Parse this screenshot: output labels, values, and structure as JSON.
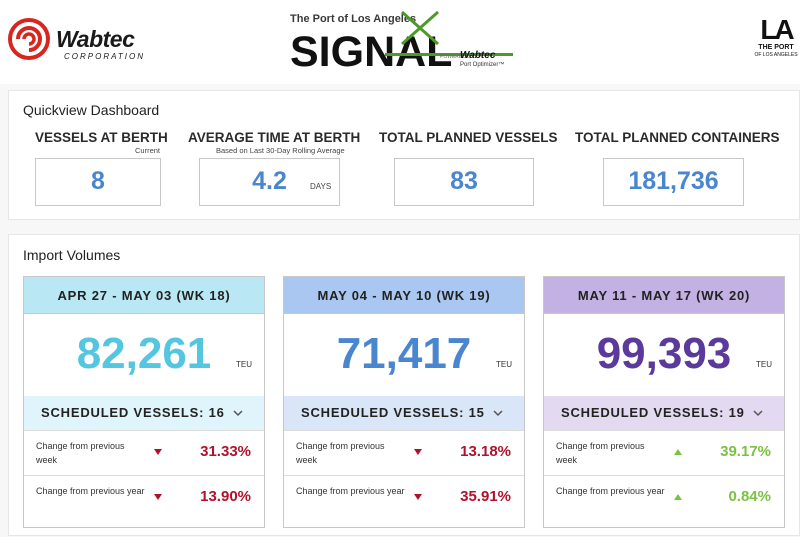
{
  "header": {
    "wabtec": {
      "name": "Wabtec",
      "corp": "CORPORATION"
    },
    "signal": {
      "port_line": "The Port of Los Angeles",
      "word": "SIGNAL",
      "powered": "POWERED BY",
      "wabtec": "Wabtec",
      "product": "Port Optimizer™"
    },
    "la": {
      "mark": "LA",
      "port": "THE PORT",
      "sub": "OF LOS ANGELES"
    }
  },
  "quickview": {
    "title": "Quickview Dashboard",
    "metrics": [
      {
        "label": "VESSELS AT BERTH",
        "sub": "Current",
        "value": "8",
        "unit": ""
      },
      {
        "label": "AVERAGE TIME AT BERTH",
        "sub": "Based on Last 30-Day Rolling Average",
        "value": "4.2",
        "unit": "DAYS"
      },
      {
        "label": "TOTAL PLANNED VESSELS",
        "sub": "",
        "value": "83",
        "unit": ""
      },
      {
        "label": "TOTAL PLANNED CONTAINERS",
        "sub": "",
        "value": "181,736",
        "unit": ""
      }
    ]
  },
  "import": {
    "title": "Import Volumes",
    "weeks": [
      {
        "range": "APR 27 - MAY 03 (WK 18)",
        "teu": "82,261",
        "unit": "TEU",
        "scheduled": "SCHEDULED VESSELS: 16",
        "week_label": "Change from previous week",
        "week_change": "31.33%",
        "week_dir": "down",
        "year_label": "Change from previous year",
        "year_change": "13.90%",
        "year_dir": "down",
        "head_color": "#b9e8f4",
        "sched_color": "#dff4fb",
        "teu_color": "#55c6e0"
      },
      {
        "range": "MAY 04 - MAY 10 (WK 19)",
        "teu": "71,417",
        "unit": "TEU",
        "scheduled": "SCHEDULED VESSELS: 15",
        "week_label": "Change from previous week",
        "week_change": "13.18%",
        "week_dir": "down",
        "year_label": "Change from previous year",
        "year_change": "35.91%",
        "year_dir": "down",
        "head_color": "#a9c7f0",
        "sched_color": "#d8e6f8",
        "teu_color": "#4a86d0"
      },
      {
        "range": "MAY 11 - MAY 17 (WK 20)",
        "teu": "99,393",
        "unit": "TEU",
        "scheduled": "SCHEDULED VESSELS: 19",
        "week_label": "Change from previous week",
        "week_change": "39.17%",
        "week_dir": "up",
        "year_label": "Change from previous year",
        "year_change": "0.84%",
        "year_dir": "up",
        "head_color": "#c2b1e2",
        "sched_color": "#e3daf2",
        "teu_color": "#5b3a9b"
      }
    ]
  },
  "colors": {
    "down": "#b0122b",
    "up": "#7cc142"
  }
}
